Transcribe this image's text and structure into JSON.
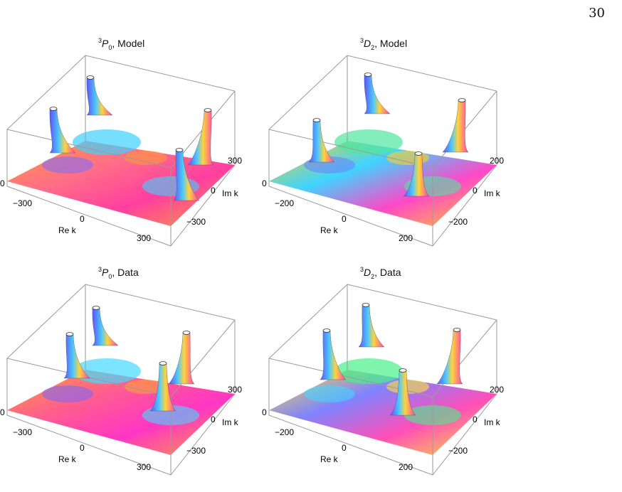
{
  "page": {
    "number": "30"
  },
  "panels": [
    {
      "id": "p1",
      "title_sup": "3",
      "title_letter": "P",
      "title_sub": "0",
      "title_rest": ", Model",
      "x_axis": {
        "label": "Re k",
        "ticks": [
          "−300",
          "0",
          "300"
        ]
      },
      "y_axis": {
        "label": "Im k",
        "ticks": [
          "300",
          "0",
          "−300"
        ]
      },
      "z_axis": {
        "ticks": [
          "0"
        ]
      },
      "colors": {
        "base": "#ff6f86",
        "hot": "#ff3fa0",
        "warm": "#ff9a3c",
        "cool": "#3fd0ff",
        "accent": "#7a6cff"
      }
    },
    {
      "id": "p2",
      "title_sup": "3",
      "title_letter": "D",
      "title_sub": "2",
      "title_rest": ", Model",
      "x_axis": {
        "label": "Re k",
        "ticks": [
          "−200",
          "0",
          "200"
        ]
      },
      "y_axis": {
        "label": "Im k",
        "ticks": [
          "200",
          "0",
          "−200"
        ]
      },
      "z_axis": {
        "ticks": [
          "0"
        ]
      },
      "colors": {
        "base": "#3fd4ff",
        "hot": "#ff48c8",
        "warm": "#ffcf28",
        "cool": "#4ee6a0",
        "accent": "#6a7dff"
      }
    },
    {
      "id": "p3",
      "title_sup": "3",
      "title_letter": "P",
      "title_sub": "0",
      "title_rest": ", Data",
      "x_axis": {
        "label": "Re k",
        "ticks": [
          "−300",
          "0",
          "300"
        ]
      },
      "y_axis": {
        "label": "Im k",
        "ticks": [
          "300",
          "0",
          "−300"
        ]
      },
      "z_axis": {
        "ticks": [
          "0"
        ]
      },
      "colors": {
        "base": "#ff5d8f",
        "hot": "#ff36c4",
        "warm": "#ffa238",
        "cool": "#44d8ff",
        "accent": "#7468ff"
      }
    },
    {
      "id": "p4",
      "title_sup": "3",
      "title_letter": "D",
      "title_sub": "2",
      "title_rest": ", Data",
      "x_axis": {
        "label": "Re k",
        "ticks": [
          "−200",
          "0",
          "200"
        ]
      },
      "y_axis": {
        "label": "Im k",
        "ticks": [
          "200",
          "0",
          "−200"
        ]
      },
      "z_axis": {
        "ticks": [
          "0"
        ]
      },
      "colors": {
        "base": "#7f84ff",
        "hot": "#ff4fb8",
        "warm": "#ffe23a",
        "cool": "#48f08a",
        "accent": "#40d8ff"
      }
    }
  ]
}
